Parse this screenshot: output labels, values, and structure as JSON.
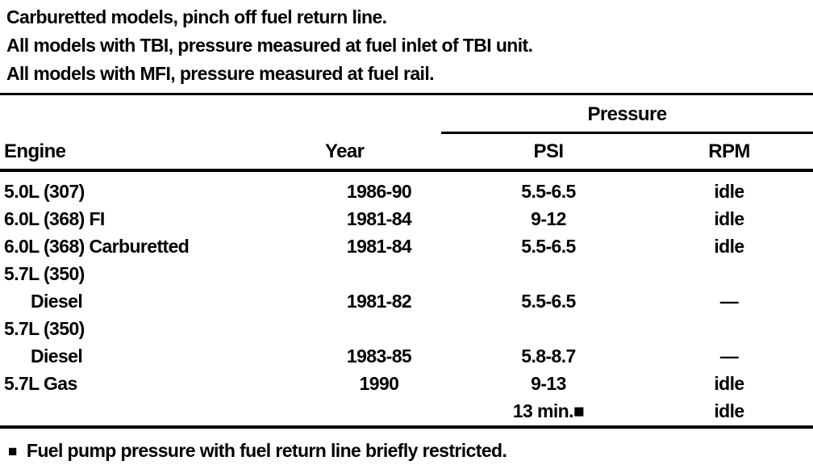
{
  "intro": {
    "lines": [
      "Carburetted models, pinch off fuel return line.",
      "All models with TBI, pressure measured at fuel inlet of TBI unit.",
      "All models with MFI, pressure measured at fuel rail."
    ]
  },
  "table": {
    "span_header": "Pressure",
    "headers": {
      "engine": "Engine",
      "year": "Year",
      "psi": "PSI",
      "rpm": "RPM"
    },
    "rows": [
      {
        "engine": "5.0L (307)",
        "indent": false,
        "year": "1986-90",
        "psi": "5.5-6.5",
        "rpm": "idle"
      },
      {
        "engine": "6.0L (368) FI",
        "indent": false,
        "year": "1981-84",
        "psi": "9-12",
        "rpm": "idle"
      },
      {
        "engine": "6.0L (368) Carburetted",
        "indent": false,
        "year": "1981-84",
        "psi": "5.5-6.5",
        "rpm": "idle"
      },
      {
        "engine": "5.7L (350)",
        "indent": false,
        "year": "",
        "psi": "",
        "rpm": ""
      },
      {
        "engine": "Diesel",
        "indent": true,
        "year": "1981-82",
        "psi": "5.5-6.5",
        "rpm": "—"
      },
      {
        "engine": "5.7L (350)",
        "indent": false,
        "year": "",
        "psi": "",
        "rpm": ""
      },
      {
        "engine": "Diesel",
        "indent": true,
        "year": "1983-85",
        "psi": "5.8-8.7",
        "rpm": "—"
      },
      {
        "engine": "5.7L Gas",
        "indent": false,
        "year": "1990",
        "psi": "9-13",
        "rpm": "idle"
      },
      {
        "engine": "",
        "indent": false,
        "year": "",
        "psi": "13 min.■",
        "rpm": "idle"
      }
    ]
  },
  "footnote": {
    "marker": "■",
    "text": "Fuel pump pressure with fuel return line briefly restricted."
  },
  "colors": {
    "ink": "#000000",
    "paper": "#ffffff"
  }
}
